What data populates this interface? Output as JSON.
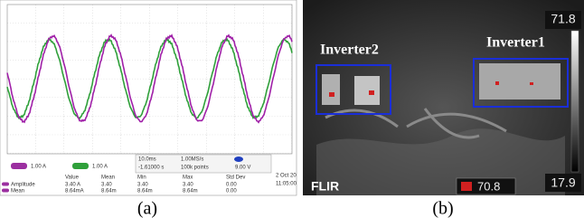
{
  "panel_a": {
    "caption": "(a)",
    "channels": [
      "1.00 A",
      "1.00 A"
    ],
    "acquisition": [
      "10.0ms",
      "1.00MS/s",
      "-1.61000 s",
      "100k points",
      "9.00 V"
    ],
    "measurements": {
      "headers": [
        "Value",
        "Mean",
        "Min",
        "Max",
        "Std Dev"
      ],
      "rows": [
        [
          "Amplitude",
          "3.40 A",
          "3.40",
          "3.40",
          "3.40",
          "0.00"
        ],
        [
          "Mean",
          "8.64mA",
          "8.64m",
          "8.64m",
          "8.64m",
          "0.00"
        ]
      ]
    },
    "date": "2 Oct 20",
    "time": "11:05:00"
  },
  "panel_b": {
    "caption": "(b)",
    "scale_max": "71.8",
    "scale_min": "17.9",
    "labels": [
      "Inverter2",
      "Inverter1"
    ],
    "brand": "FLIR",
    "spot": "70.8"
  }
}
